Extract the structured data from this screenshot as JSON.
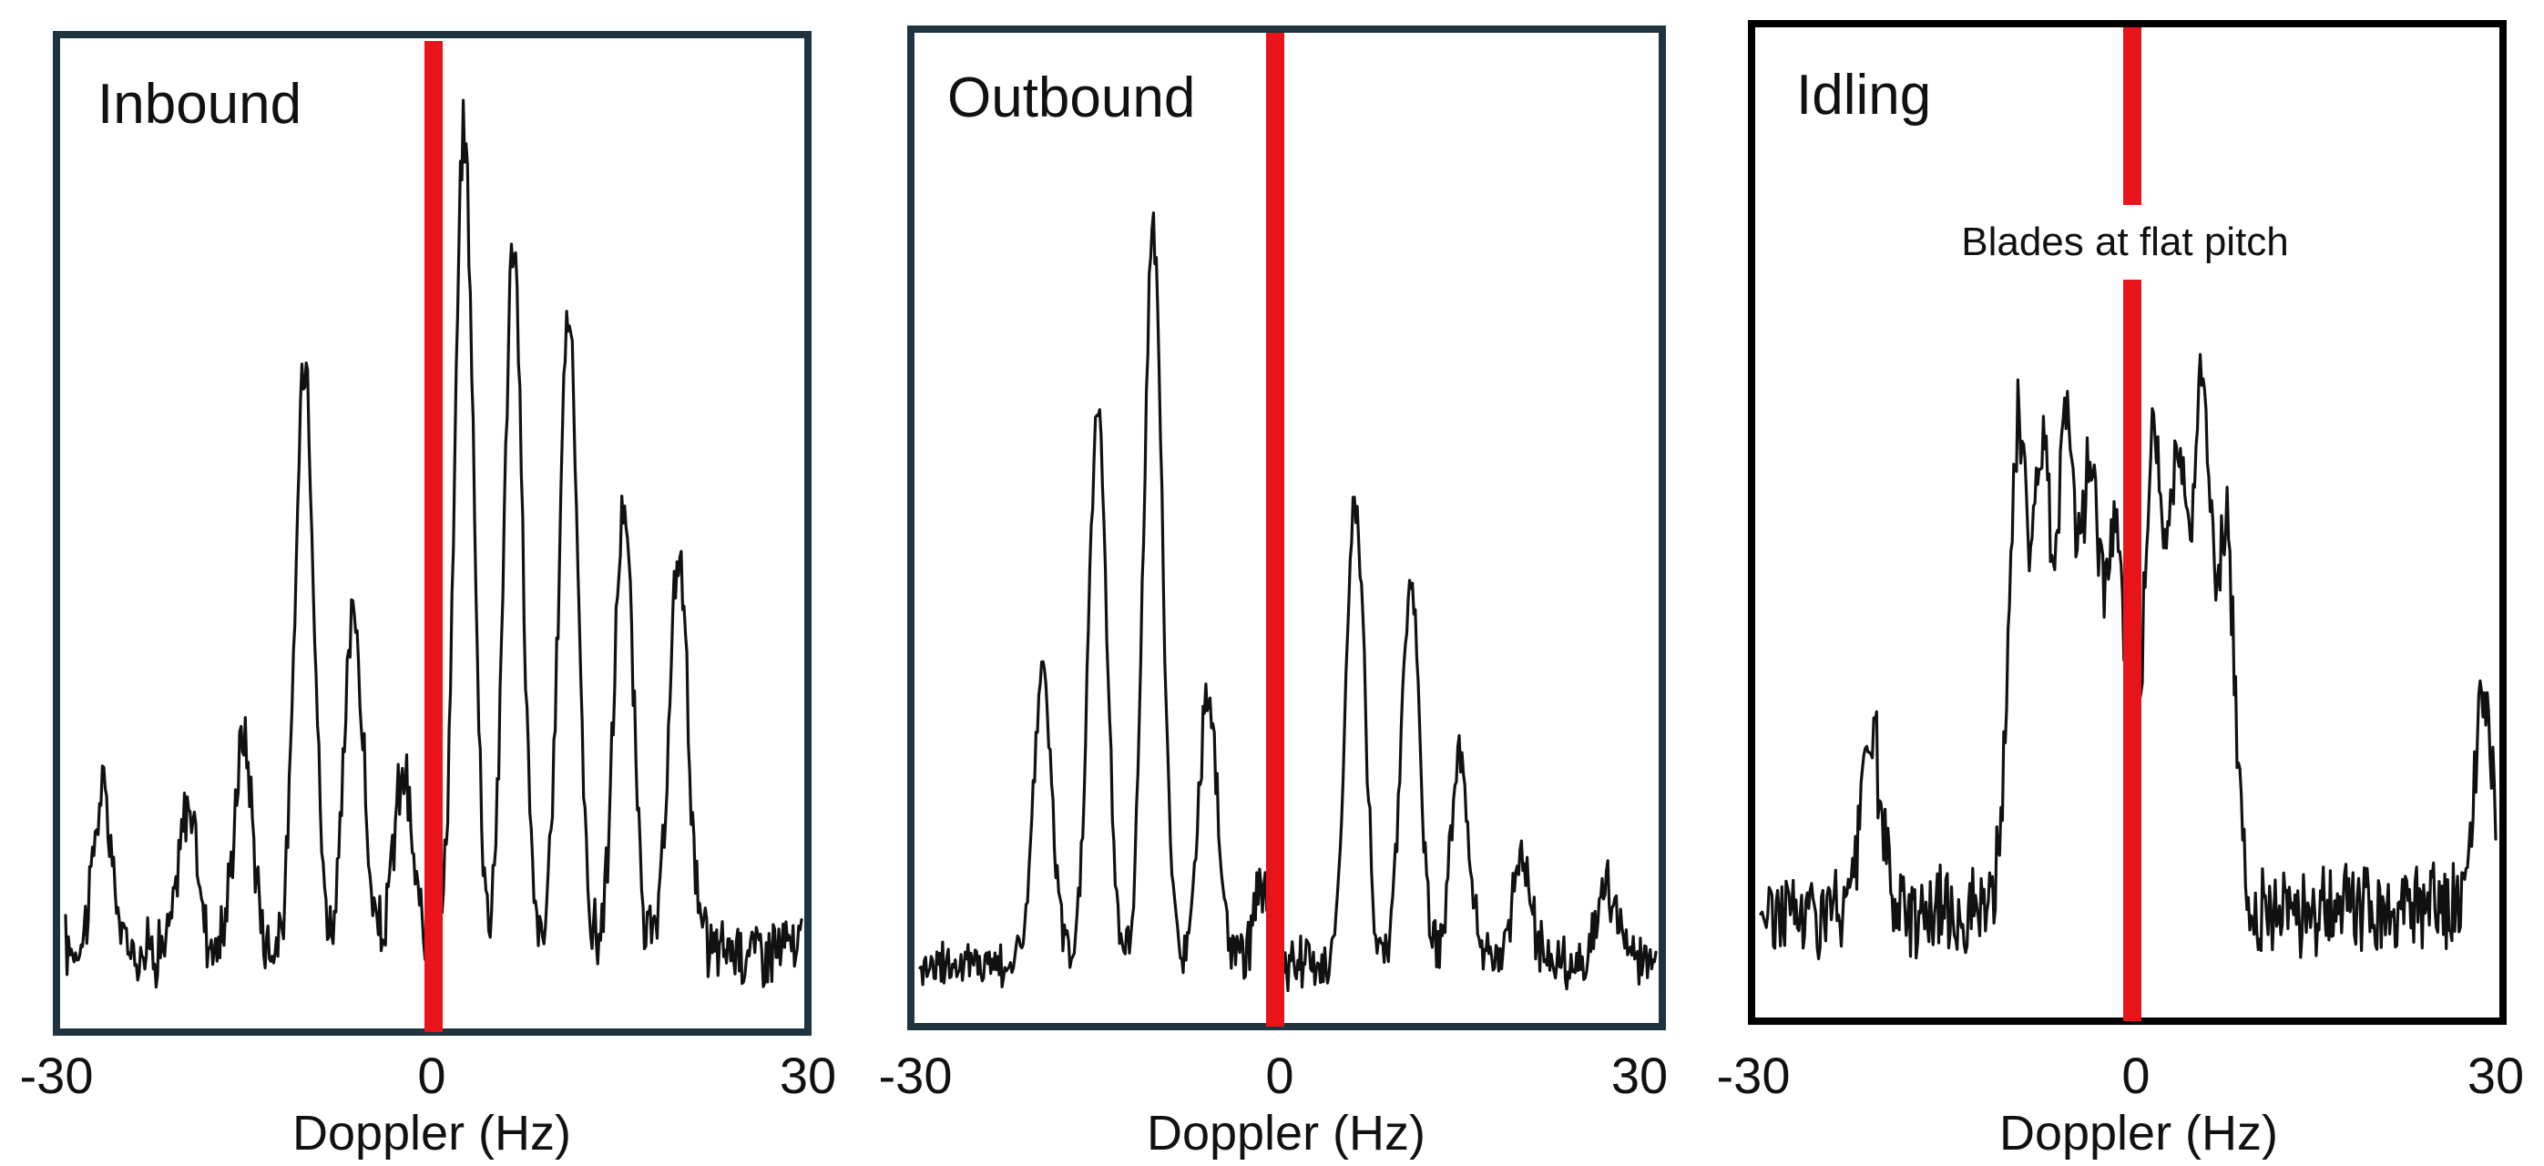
{
  "chart_data": [
    {
      "type": "line",
      "title": "Inbound",
      "xlabel": "Doppler (Hz)",
      "ylabel": "",
      "xlim": [
        -30,
        30
      ],
      "ylim": [
        0,
        1
      ],
      "x_ticks": [
        "-30",
        "0",
        "30"
      ],
      "grid": false,
      "border_color": "#1f3340",
      "marker": {
        "x": 0,
        "color": "#e8141a"
      },
      "peaks": [
        {
          "x": -27,
          "y": 0.16
        },
        {
          "x": -20,
          "y": 0.15
        },
        {
          "x": -15.5,
          "y": 0.22
        },
        {
          "x": -10.5,
          "y": 0.62
        },
        {
          "x": -6.5,
          "y": 0.35
        },
        {
          "x": -2.5,
          "y": 0.18
        },
        {
          "x": 2.5,
          "y": 0.85
        },
        {
          "x": 6.5,
          "y": 0.73
        },
        {
          "x": 11,
          "y": 0.67
        },
        {
          "x": 15.5,
          "y": 0.46
        },
        {
          "x": 20,
          "y": 0.41
        }
      ],
      "noise_floor": 0.07
    },
    {
      "type": "line",
      "title": "Outbound",
      "xlabel": "Doppler (Hz)",
      "ylabel": "",
      "xlim": [
        -30,
        30
      ],
      "ylim": [
        0,
        1
      ],
      "x_ticks": [
        "-30",
        "0",
        "30"
      ],
      "grid": false,
      "border_color": "#1f3340",
      "marker": {
        "x": 0,
        "color": "#e8141a"
      },
      "peaks": [
        {
          "x": -20,
          "y": 0.3
        },
        {
          "x": -15.5,
          "y": 0.58
        },
        {
          "x": -11,
          "y": 0.76
        },
        {
          "x": -6.5,
          "y": 0.28
        },
        {
          "x": -2,
          "y": 0.08
        },
        {
          "x": 5.5,
          "y": 0.48
        },
        {
          "x": 10,
          "y": 0.4
        },
        {
          "x": 14,
          "y": 0.21
        },
        {
          "x": 19,
          "y": 0.11
        },
        {
          "x": 26,
          "y": 0.08
        }
      ],
      "noise_floor": 0.05
    },
    {
      "type": "line",
      "title": "Idling",
      "xlabel": "Doppler (Hz)",
      "ylabel": "",
      "xlim": [
        -30,
        30
      ],
      "ylim": [
        0,
        1
      ],
      "x_ticks": [
        "-30",
        "0",
        "30"
      ],
      "grid": false,
      "border_color": "#000000",
      "marker": {
        "x": 0,
        "color": "#e8141a"
      },
      "annotation": "Blades at flat pitch",
      "peaks": [
        {
          "x": -21,
          "y": 0.19
        },
        {
          "x": -9,
          "y": 0.49
        },
        {
          "x": -7,
          "y": 0.45
        },
        {
          "x": -5,
          "y": 0.5
        },
        {
          "x": -3,
          "y": 0.44
        },
        {
          "x": -1,
          "y": 0.4
        },
        {
          "x": 2,
          "y": 0.49
        },
        {
          "x": 4,
          "y": 0.46
        },
        {
          "x": 6,
          "y": 0.52
        },
        {
          "x": 8,
          "y": 0.38
        },
        {
          "x": 29,
          "y": 0.21
        }
      ],
      "noise_floor": 0.1
    }
  ]
}
